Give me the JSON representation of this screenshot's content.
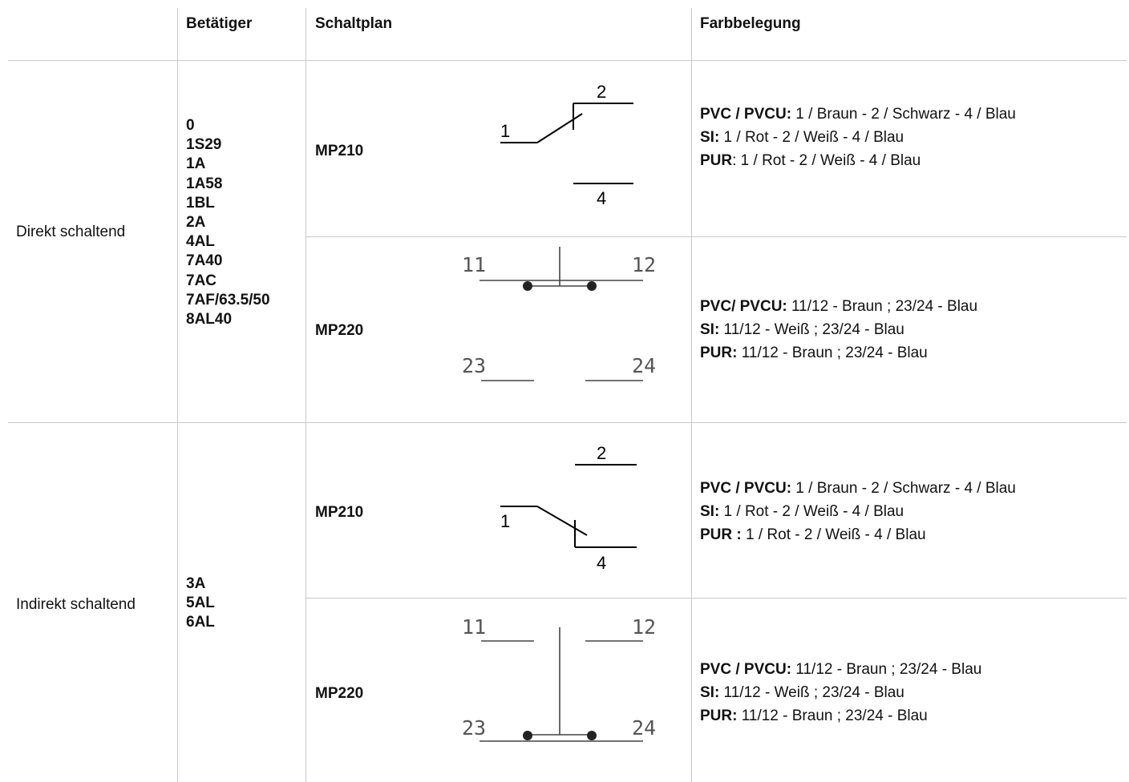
{
  "headers": {
    "betaetiger": "Betätiger",
    "schaltplan": "Schaltplan",
    "farbbelegung": "Farbbelegung"
  },
  "groups": [
    {
      "label": "Direkt schaltend",
      "betaetiger": [
        "0",
        "1S29",
        "1A",
        "1A58",
        "1BL",
        "2A",
        "4AL",
        "7A40",
        "7AC",
        "7AF/63.5/50",
        "8AL40"
      ],
      "rows": [
        {
          "model": "MP210",
          "diagram": {
            "terminals": [
              "1",
              "2",
              "4"
            ],
            "contact": "closed-to-2"
          },
          "colors": [
            {
              "key": "PVC / PVCU:",
              "value": " 1 / Braun - 2 / Schwarz - 4 / Blau"
            },
            {
              "key": "SI:",
              "value": " 1 / Rot - 2 / Weiß - 4 / Blau"
            },
            {
              "key": "PUR",
              "value": ": 1 / Rot - 2 / Weiß - 4 / Blau"
            }
          ]
        },
        {
          "model": "MP220",
          "diagram": {
            "terminals": [
              "11",
              "12",
              "23",
              "24"
            ],
            "contact": "closed-top"
          },
          "colors": [
            {
              "key": "PVC/ PVCU:",
              "value": " 11/12 - Braun ; 23/24 - Blau"
            },
            {
              "key": "SI:",
              "value": " 11/12 - Weiß ; 23/24 - Blau"
            },
            {
              "key": "PUR:",
              "value": " 11/12 - Braun ; 23/24 - Blau"
            }
          ]
        }
      ]
    },
    {
      "label": "Indirekt schaltend",
      "betaetiger": [
        "3A",
        "5AL",
        "6AL"
      ],
      "rows": [
        {
          "model": "MP210",
          "diagram": {
            "terminals": [
              "1",
              "2",
              "4"
            ],
            "contact": "closed-to-4"
          },
          "colors": [
            {
              "key": "PVC / PVCU:",
              "value": " 1 / Braun - 2 / Schwarz - 4 / Blau"
            },
            {
              "key": "SI:",
              "value": " 1 / Rot - 2 / Weiß - 4 / Blau"
            },
            {
              "key": "PUR :",
              "value": " 1 / Rot - 2 / Weiß - 4 / Blau"
            }
          ]
        },
        {
          "model": "MP220",
          "diagram": {
            "terminals": [
              "11",
              "12",
              "23",
              "24"
            ],
            "contact": "closed-bottom"
          },
          "colors": [
            {
              "key": "PVC / PVCU:",
              "value": " 11/12 - Braun ; 23/24 - Blau"
            },
            {
              "key": "SI:",
              "value": " 11/12 - Weiß ; 23/24 - Blau"
            },
            {
              "key": "PUR:",
              "value": " 11/12 - Braun ; 23/24 - Blau"
            }
          ]
        }
      ]
    }
  ]
}
